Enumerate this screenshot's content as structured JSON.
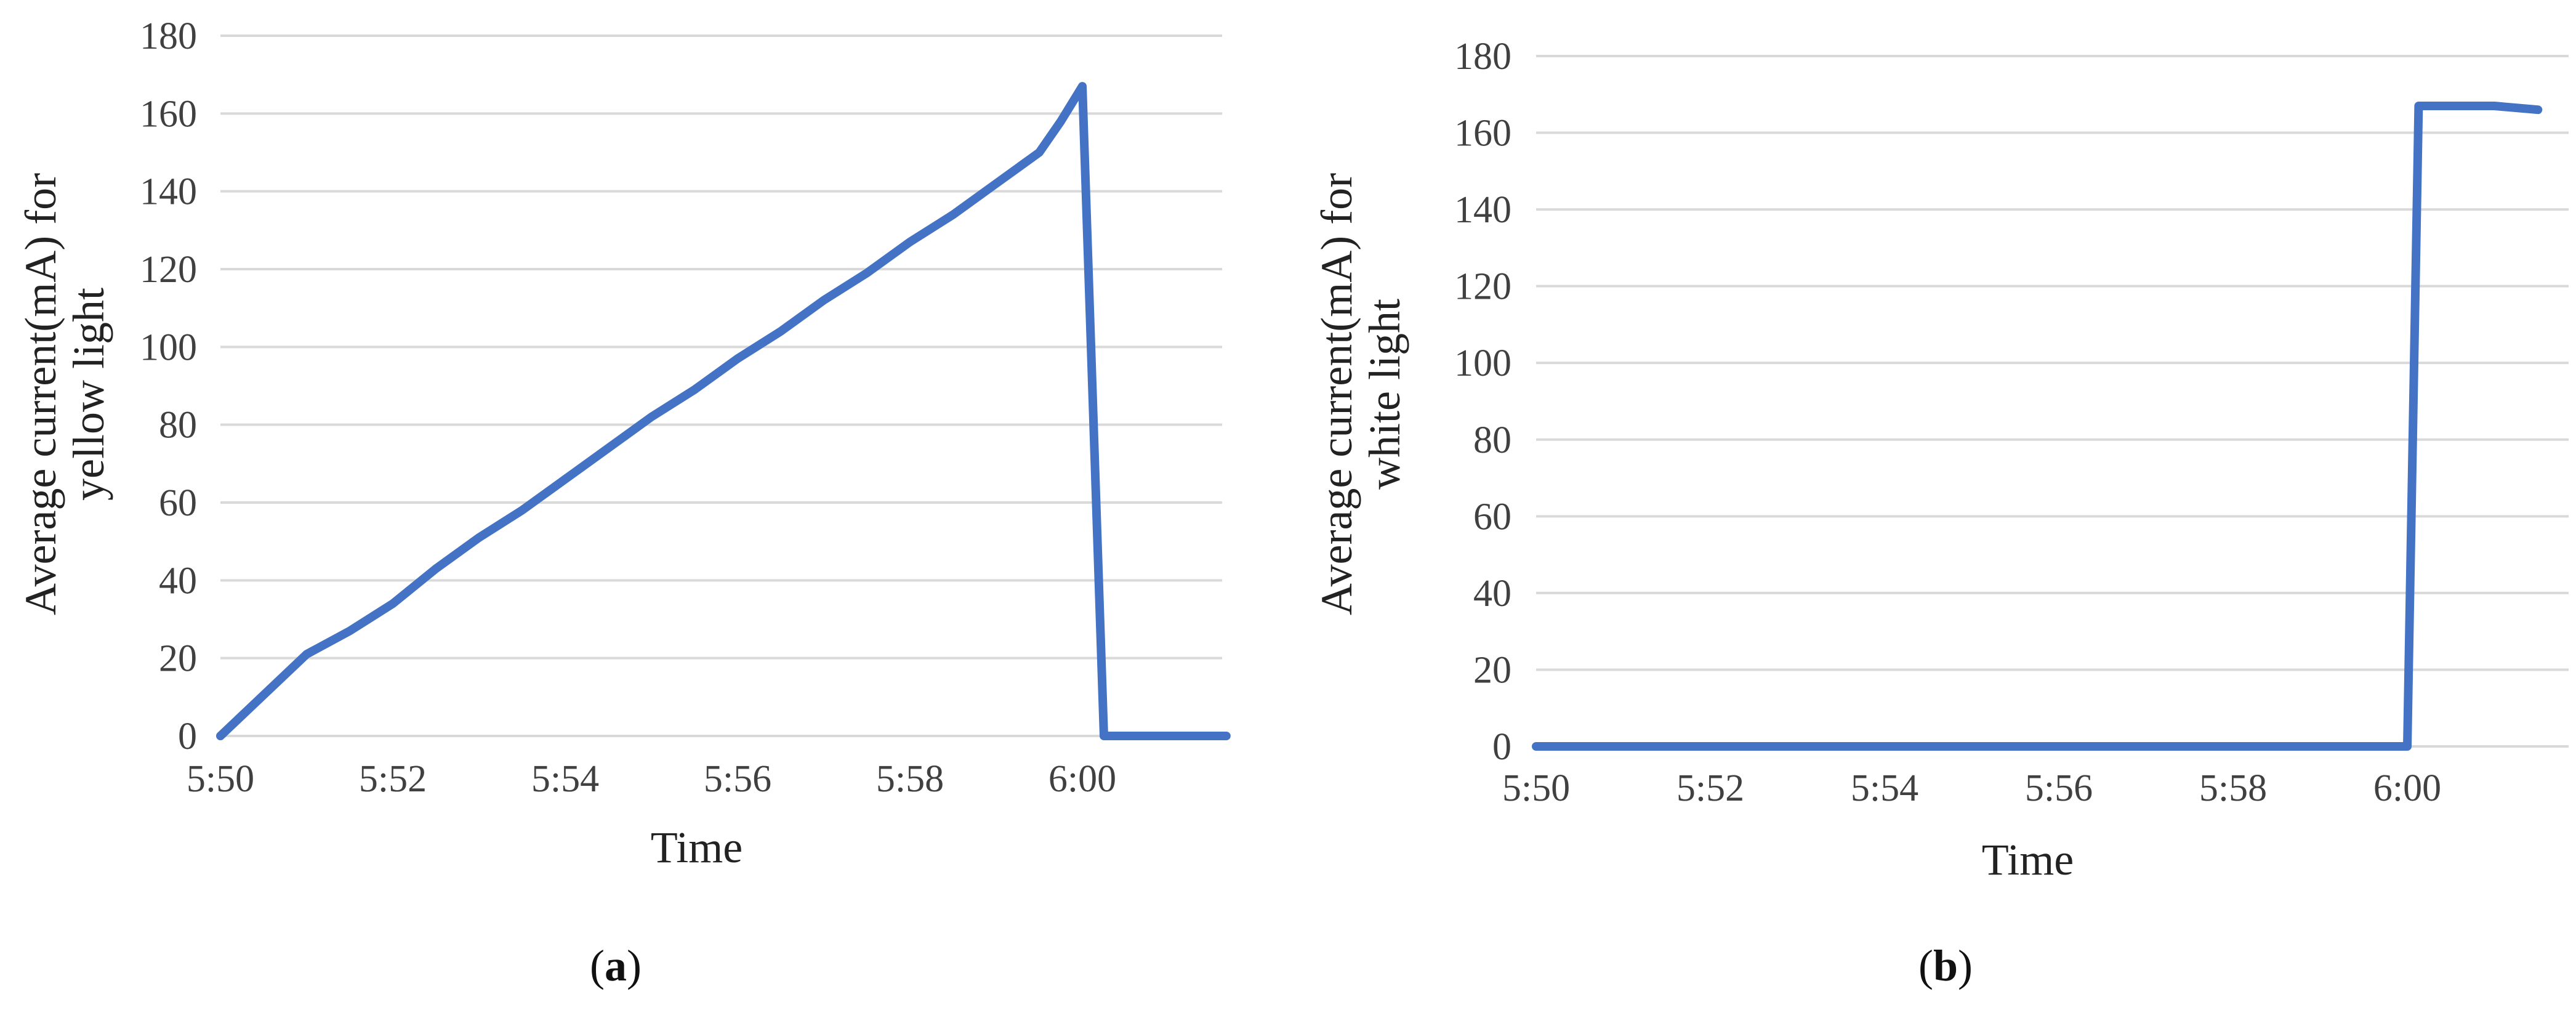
{
  "colors": {
    "series": "#4472c4",
    "grid": "#d9d9d9",
    "text": "#404040"
  },
  "chart_data": [
    {
      "type": "line",
      "panel_label": "a",
      "xlabel": "Time",
      "ylabel_lines": [
        "Average current(mA) for",
        "yellow light"
      ],
      "ylim": [
        0,
        180
      ],
      "yticks": [
        0,
        20,
        40,
        60,
        80,
        100,
        120,
        140,
        160,
        180
      ],
      "xticks": [
        "5:50",
        "5:52",
        "5:54",
        "5:56",
        "5:58",
        "6:00"
      ],
      "xlim_minutes": [
        0,
        12
      ],
      "grid": true,
      "series": [
        {
          "x": [
            "5:50",
            "5:51",
            "5:51:30",
            "5:52",
            "5:52:30",
            "5:53",
            "5:53:30",
            "5:54",
            "5:54:30",
            "5:55",
            "5:55:30",
            "5:56",
            "5:56:30",
            "5:57",
            "5:57:30",
            "5:58",
            "5:58:30",
            "5:59",
            "5:59:30",
            "5:59:45",
            "6:00",
            "6:00:15",
            "6:00:30",
            "6:01",
            "6:01:30",
            "6:01:40"
          ],
          "x_minutes": [
            0,
            1,
            1.5,
            2,
            2.5,
            3,
            3.5,
            4,
            4.5,
            5,
            5.5,
            6,
            6.5,
            7,
            7.5,
            8,
            8.5,
            9,
            9.5,
            9.75,
            10,
            10.25,
            10.5,
            11,
            11.5,
            11.67
          ],
          "values": [
            0,
            21,
            27,
            34,
            43,
            51,
            58,
            66,
            74,
            82,
            89,
            97,
            104,
            112,
            119,
            127,
            134,
            142,
            150,
            158,
            167,
            0,
            0,
            0,
            0,
            0
          ]
        }
      ]
    },
    {
      "type": "line",
      "panel_label": "b",
      "xlabel": "Time",
      "ylabel_lines": [
        "Average current(mA) for",
        "white light"
      ],
      "ylim": [
        0,
        180
      ],
      "yticks": [
        0,
        20,
        40,
        60,
        80,
        100,
        120,
        140,
        160,
        180
      ],
      "xticks": [
        "5:50",
        "5:52",
        "5:54",
        "5:56",
        "5:58",
        "6:00"
      ],
      "xlim_minutes": [
        0,
        12
      ],
      "grid": true,
      "series": [
        {
          "x": [
            "5:50",
            "5:55",
            "6:00",
            "6:00:08",
            "6:00:30",
            "6:01",
            "6:01:30"
          ],
          "x_minutes": [
            0,
            5,
            10,
            10.13,
            10.5,
            11,
            11.5
          ],
          "values": [
            0,
            0,
            0,
            167,
            167,
            167,
            166
          ]
        }
      ]
    }
  ]
}
